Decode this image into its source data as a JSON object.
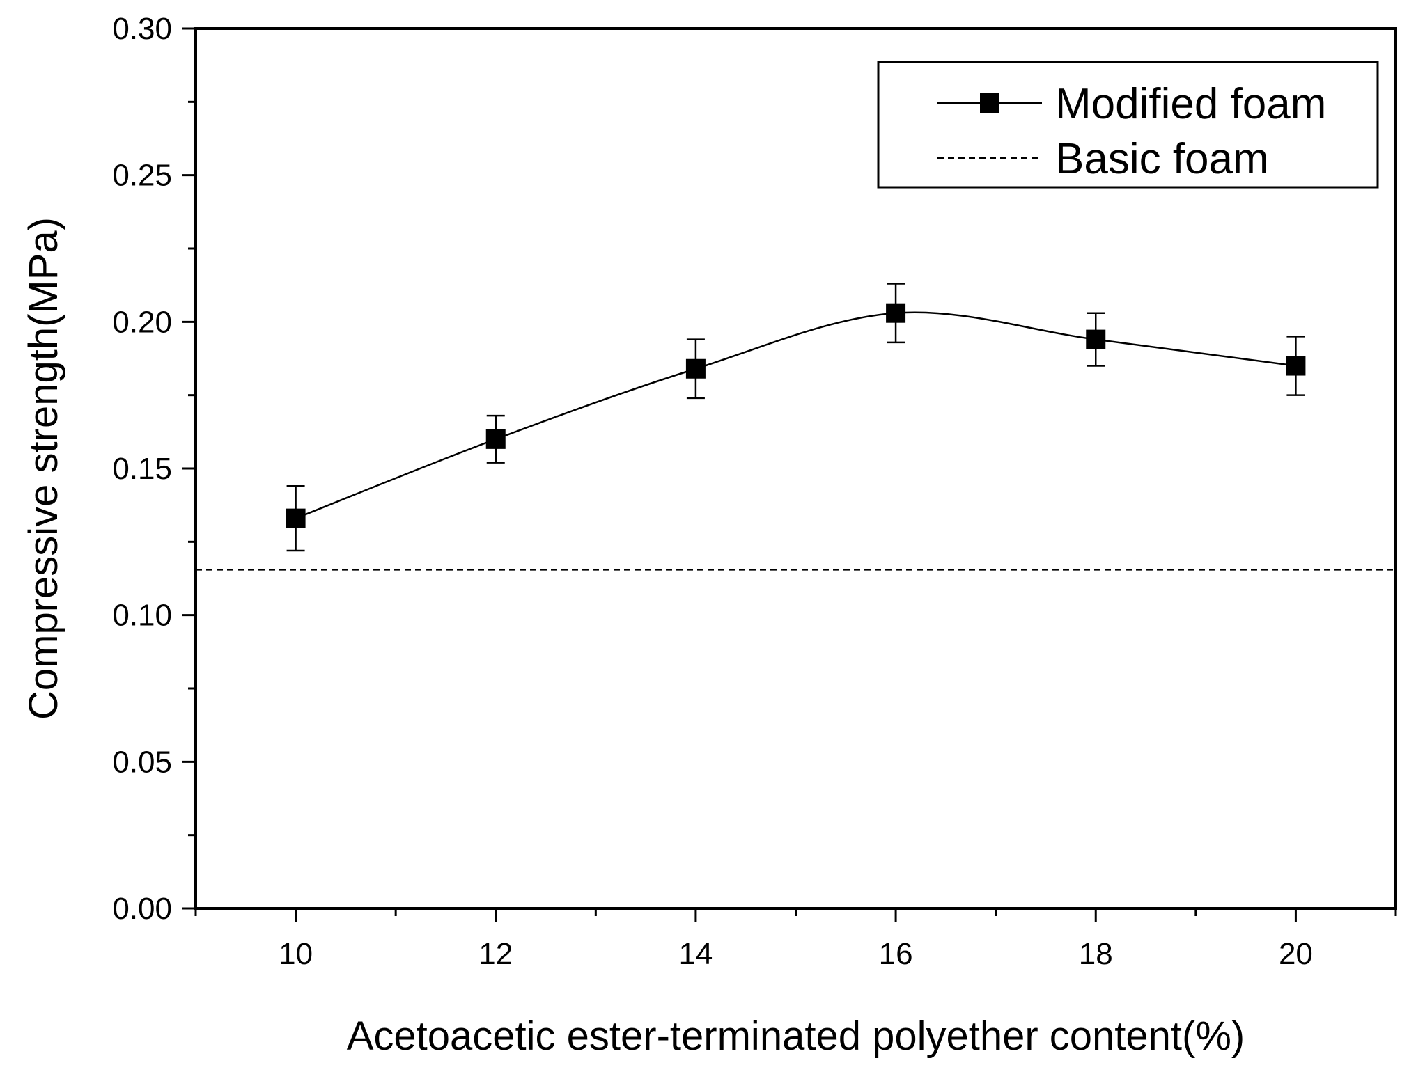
{
  "chart_data": {
    "type": "line",
    "title": "",
    "xlabel": "Acetoacetic ester-terminated polyether content(%)",
    "ylabel": "Compressive strength(MPa)",
    "xlim": [
      9,
      21
    ],
    "ylim": [
      0.0,
      0.3
    ],
    "x_ticks": [
      10,
      12,
      14,
      16,
      18,
      20
    ],
    "x_tick_labels": [
      "10",
      "12",
      "14",
      "16",
      "18",
      "20"
    ],
    "y_ticks": [
      0.0,
      0.05,
      0.1,
      0.15,
      0.2,
      0.25,
      0.3
    ],
    "y_tick_labels": [
      "0.00",
      "0.05",
      "0.10",
      "0.15",
      "0.20",
      "0.25",
      "0.30"
    ],
    "grid": false,
    "legend_position": "top-right",
    "series": [
      {
        "name": "Modified foam",
        "style": "solid line with square markers",
        "color": "#000000",
        "x": [
          10,
          12,
          14,
          16,
          18,
          20
        ],
        "y": [
          0.133,
          0.16,
          0.184,
          0.203,
          0.194,
          0.185
        ],
        "error": [
          0.011,
          0.008,
          0.01,
          0.01,
          0.009,
          0.01
        ]
      },
      {
        "name": "Basic foam",
        "style": "dashed horizontal line",
        "color": "#000000",
        "y": 0.1155
      }
    ]
  }
}
